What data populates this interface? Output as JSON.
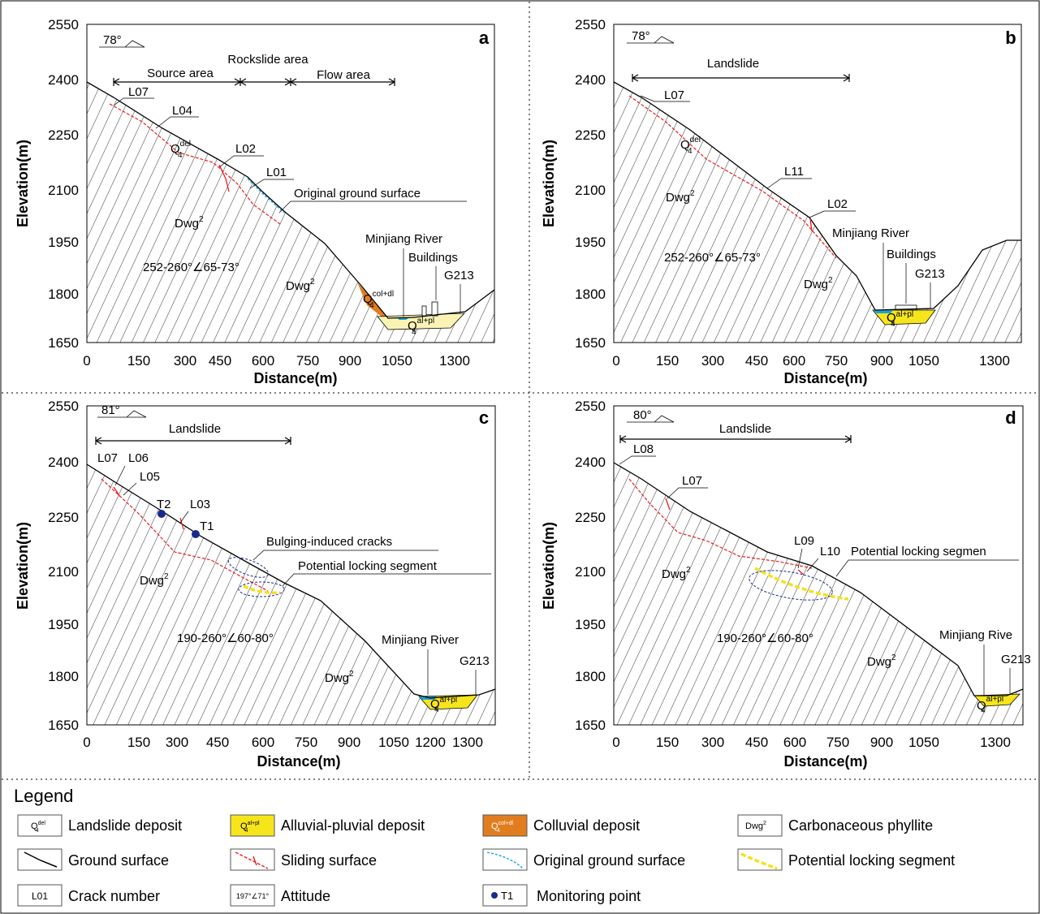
{
  "axes": {
    "y_ticks": [
      "2550",
      "2400",
      "2250",
      "2100",
      "1950",
      "1800",
      "1650"
    ],
    "ylabel": "Elevation(m)",
    "xlabel": "Distance(m)",
    "x_ticks_abd": [
      "0",
      "150",
      "300",
      "450",
      "600",
      "750",
      "900",
      "1050",
      "1300"
    ],
    "x_ticks_c": [
      "0",
      "150",
      "300",
      "450",
      "600",
      "750",
      "900",
      "1050",
      "1200",
      "1300"
    ]
  },
  "panels": {
    "a": {
      "letter": "a",
      "attitude": "78°",
      "source_area": "Source area",
      "rockslide_area": "Rockslide area",
      "flow_area": "Flow area",
      "cracks": [
        "L07",
        "L04",
        "L02",
        "L01"
      ],
      "q_del": "Q",
      "q_del_sup": "del",
      "q_del_sub": "4",
      "original_ground": "Original ground surface",
      "dwg_upper": "Dwg",
      "dwg_lower": "Dwg",
      "dwg_sup": "2",
      "structure": "252-260°∠65-73°",
      "river": "Minjiang River",
      "buildings": "Buildings",
      "road": "G213",
      "q_col": "Q",
      "q_col_sup": "col+dl",
      "q_al": "Q",
      "q_al_sup": "al+pl",
      "q_sub": "4"
    },
    "b": {
      "letter": "b",
      "attitude": "78°",
      "landslide": "Landslide",
      "cracks": [
        "L07",
        "L11",
        "L02"
      ],
      "q_del": "Q",
      "q_del_sup": "del",
      "q_del_sub": "4",
      "dwg_upper": "Dwg",
      "dwg_lower": "Dwg",
      "dwg_sup": "2",
      "structure": "252-260°∠65-73°",
      "river": "Minjiang River",
      "buildings": "Buildings",
      "road": "G213",
      "q_al": "Q",
      "q_al_sup": "al+pl",
      "q_sub": "4"
    },
    "c": {
      "letter": "c",
      "attitude": "81°",
      "landslide": "Landslide",
      "cracks": [
        "L07",
        "L06",
        "L05",
        "L03"
      ],
      "monitoring": [
        "T2",
        "T1"
      ],
      "bulging": "Bulging-induced cracks",
      "locking": "Potential locking segment",
      "dwg_upper": "Dwg",
      "dwg_lower": "Dwg",
      "dwg_sup": "2",
      "structure": "190-260°∠60-80°",
      "river": "Minjiang River",
      "road": "G213",
      "q_al": "Q",
      "q_al_sup": "al+pl",
      "q_sub": "4"
    },
    "d": {
      "letter": "d",
      "attitude": "80°",
      "landslide": "Landslide",
      "cracks": [
        "L08",
        "L07",
        "L09",
        "L10"
      ],
      "locking": "Potential locking segmen",
      "dwg_upper": "Dwg",
      "dwg_lower": "Dwg",
      "dwg_sup": "2",
      "structure": "190-260°∠60-80°",
      "river": "Minjiang Rive",
      "road": "G213",
      "q_al": "Q",
      "q_al_sup": "al+pl",
      "q_sub": "4"
    }
  },
  "legend": {
    "title": "Legend",
    "items": [
      {
        "symbol": "Q",
        "symbol_sup": "del",
        "symbol_sub": "4",
        "label": "Landslide deposit"
      },
      {
        "symbol": "Q",
        "symbol_sup": "al+pl",
        "symbol_sub": "4",
        "label": "Alluvial-pluvial deposit"
      },
      {
        "symbol": "Q",
        "symbol_sup": "col+dl",
        "symbol_sub": "4",
        "label": "Colluvial deposit"
      },
      {
        "symbol": "Dwg",
        "symbol_sup": "2",
        "label": "Carbonaceous phyllite"
      },
      {
        "label": "Ground surface"
      },
      {
        "label": "Sliding surface"
      },
      {
        "label": "Original ground surface"
      },
      {
        "label": "Potential locking segment"
      },
      {
        "symbol": "L01",
        "label": "Crack number"
      },
      {
        "symbol": "197°∠71°",
        "label": "Attitude"
      },
      {
        "symbol": "T1",
        "label": "Monitoring point"
      }
    ]
  },
  "colors": {
    "sliding_surface": "#e8201e",
    "original_ground": "#1fa3e0",
    "locking_segment": "#f5e11a",
    "ellipse": "#1a2a8c",
    "monitoring_point": "#1a2a8c",
    "alluvial_a": "#fbf3b4",
    "alluvial": "#f7e51b",
    "colluvial": "#e27d1f",
    "river": "#1e9fd0"
  }
}
